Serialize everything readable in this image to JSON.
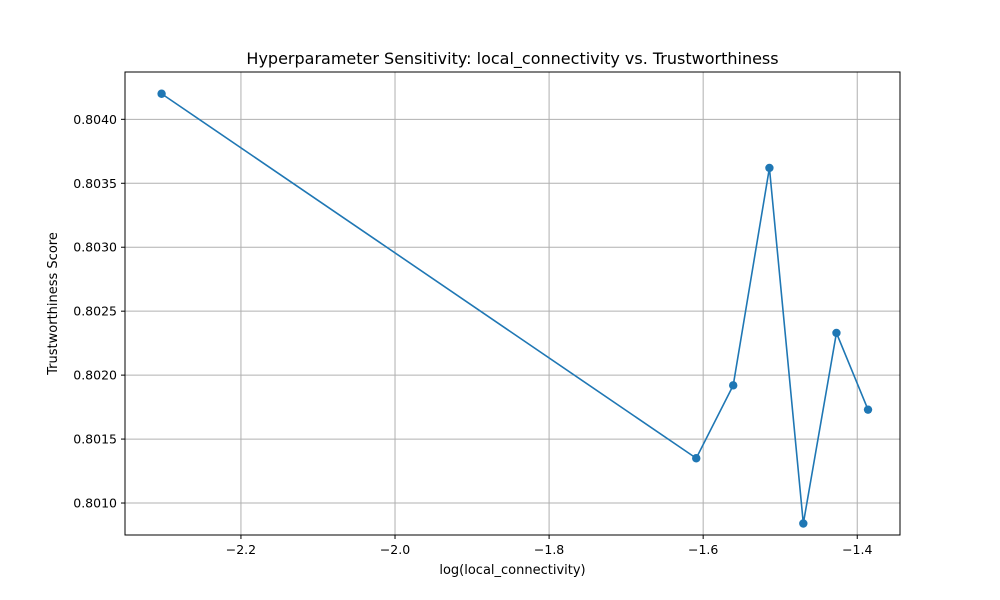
{
  "chart_data": {
    "type": "line",
    "title": "Hyperparameter Sensitivity: local_connectivity vs. Trustworthiness",
    "xlabel": "log(local_connectivity)",
    "ylabel": "Trustworthiness Score",
    "xlim": [
      -2.3505,
      -1.3445
    ],
    "ylim": [
      0.80075,
      0.80437
    ],
    "x_ticks": [
      -2.2,
      -2.0,
      -1.8,
      -1.6,
      -1.4
    ],
    "x_tick_labels": [
      "−2.2",
      "−2.0",
      "−1.8",
      "−1.6",
      "−1.4"
    ],
    "y_ticks": [
      0.801,
      0.8015,
      0.802,
      0.8025,
      0.803,
      0.8035,
      0.804
    ],
    "y_tick_labels": [
      "0.8010",
      "0.8015",
      "0.8020",
      "0.8025",
      "0.8030",
      "0.8035",
      "0.8040"
    ],
    "grid": true,
    "marker": "circle",
    "colors": {
      "series": "#1f77b4"
    },
    "series": [
      {
        "x": [
          -2.303,
          -1.609,
          -1.561,
          -1.514,
          -1.47,
          -1.427,
          -1.386
        ],
        "y": [
          0.8042,
          0.80135,
          0.80192,
          0.80362,
          0.80084,
          0.80233,
          0.80173
        ]
      }
    ]
  }
}
